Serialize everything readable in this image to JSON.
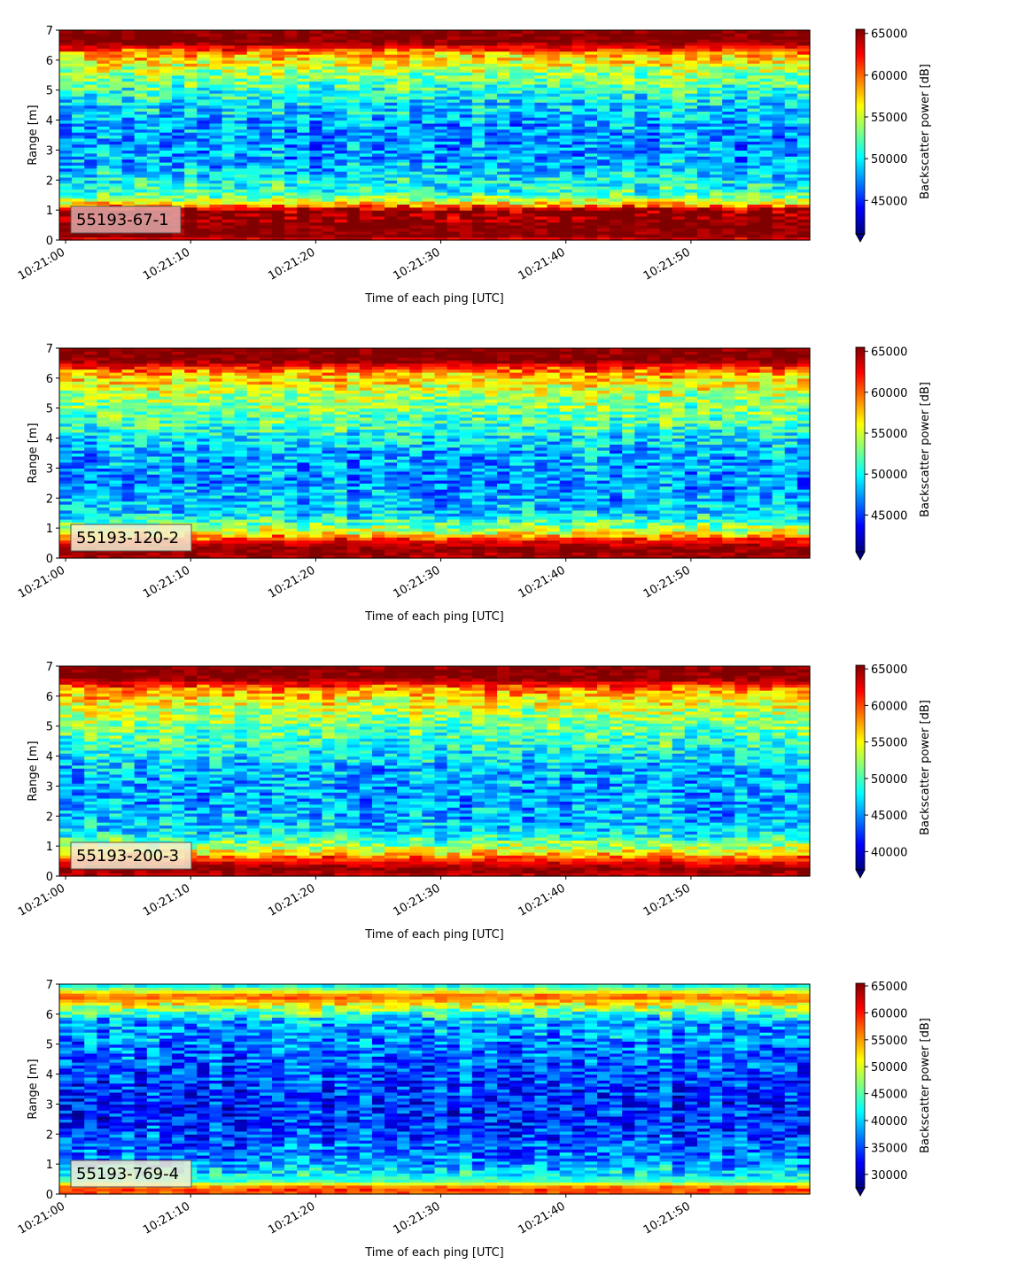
{
  "figure": {
    "panel_labels": [
      "55193-67-1",
      "55193-120-2",
      "55193-200-3",
      "55193-769-4"
    ]
  },
  "chart_data": [
    {
      "type": "heatmap",
      "annotation": "55193-67-1",
      "annotation_color": "#e0a8a8",
      "xlabel": "Time of each ping [UTC]",
      "ylabel": "Range [m]",
      "colorbar_label": "Backscatter power [dB]",
      "x_ticks": [
        "10:21:00",
        "10:21:10",
        "10:21:20",
        "10:21:30",
        "10:21:40",
        "10:21:50"
      ],
      "xlim_seconds": [
        -0.5,
        59.5
      ],
      "y_ticks": [
        0,
        1,
        2,
        3,
        4,
        5,
        6,
        7
      ],
      "ylim": [
        0,
        7
      ],
      "clim": [
        41000,
        65500
      ],
      "colorbar_ticks": [
        45000,
        50000,
        55000,
        60000,
        65000
      ],
      "colormap": "jet",
      "mean_profile": [
        {
          "range": 0.0,
          "value": 62000
        },
        {
          "range": 0.15,
          "value": 65500
        },
        {
          "range": 1.0,
          "value": 65500
        },
        {
          "range": 1.2,
          "value": 58000
        },
        {
          "range": 1.5,
          "value": 52000
        },
        {
          "range": 2.5,
          "value": 48500
        },
        {
          "range": 3.5,
          "value": 47500
        },
        {
          "range": 4.5,
          "value": 49500
        },
        {
          "range": 5.5,
          "value": 53500
        },
        {
          "range": 6.2,
          "value": 58000
        },
        {
          "range": 6.6,
          "value": 65500
        },
        {
          "range": 7.0,
          "value": 65500
        }
      ]
    },
    {
      "type": "heatmap",
      "annotation": "55193-120-2",
      "annotation_color": "#f4eed2",
      "xlabel": "Time of each ping [UTC]",
      "ylabel": "Range [m]",
      "colorbar_label": "Backscatter power [dB]",
      "x_ticks": [
        "10:21:00",
        "10:21:10",
        "10:21:20",
        "10:21:30",
        "10:21:40",
        "10:21:50"
      ],
      "xlim_seconds": [
        -0.5,
        59.5
      ],
      "y_ticks": [
        0,
        1,
        2,
        3,
        4,
        5,
        6,
        7
      ],
      "ylim": [
        0,
        7
      ],
      "clim": [
        40500,
        65500
      ],
      "colorbar_ticks": [
        45000,
        50000,
        55000,
        60000,
        65000
      ],
      "colormap": "jet",
      "mean_profile": [
        {
          "range": 0.0,
          "value": 64000
        },
        {
          "range": 0.3,
          "value": 65500
        },
        {
          "range": 0.55,
          "value": 63000
        },
        {
          "range": 0.9,
          "value": 55000
        },
        {
          "range": 1.5,
          "value": 49000
        },
        {
          "range": 2.5,
          "value": 47500
        },
        {
          "range": 3.5,
          "value": 48000
        },
        {
          "range": 4.5,
          "value": 51500
        },
        {
          "range": 5.5,
          "value": 54500
        },
        {
          "range": 6.2,
          "value": 58500
        },
        {
          "range": 6.6,
          "value": 65500
        },
        {
          "range": 7.0,
          "value": 65500
        }
      ]
    },
    {
      "type": "heatmap",
      "annotation": "55193-200-3",
      "annotation_color": "#f4eed2",
      "xlabel": "Time of each ping [UTC]",
      "ylabel": "Range [m]",
      "colorbar_label": "Backscatter power [dB]",
      "x_ticks": [
        "10:21:00",
        "10:21:10",
        "10:21:20",
        "10:21:30",
        "10:21:40",
        "10:21:50"
      ],
      "xlim_seconds": [
        -0.5,
        59.5
      ],
      "y_ticks": [
        0,
        1,
        2,
        3,
        4,
        5,
        6,
        7
      ],
      "ylim": [
        0,
        7
      ],
      "clim": [
        37500,
        65500
      ],
      "colorbar_ticks": [
        40000,
        45000,
        50000,
        55000,
        60000,
        65000
      ],
      "colormap": "jet",
      "mean_profile": [
        {
          "range": 0.0,
          "value": 63000
        },
        {
          "range": 0.25,
          "value": 65500
        },
        {
          "range": 0.5,
          "value": 62000
        },
        {
          "range": 0.9,
          "value": 54000
        },
        {
          "range": 1.5,
          "value": 47000
        },
        {
          "range": 2.5,
          "value": 45500
        },
        {
          "range": 3.5,
          "value": 46000
        },
        {
          "range": 4.5,
          "value": 49500
        },
        {
          "range": 5.5,
          "value": 53000
        },
        {
          "range": 6.2,
          "value": 57500
        },
        {
          "range": 6.6,
          "value": 65500
        },
        {
          "range": 7.0,
          "value": 65500
        }
      ]
    },
    {
      "type": "heatmap",
      "annotation": "55193-769-4",
      "annotation_color": "#f4eed2",
      "xlabel": "Time of each ping [UTC]",
      "ylabel": "Range [m]",
      "colorbar_label": "Backscatter power [dB]",
      "x_ticks": [
        "10:21:00",
        "10:21:10",
        "10:21:20",
        "10:21:30",
        "10:21:40",
        "10:21:50"
      ],
      "xlim_seconds": [
        -0.5,
        59.5
      ],
      "y_ticks": [
        0,
        1,
        2,
        3,
        4,
        5,
        6,
        7
      ],
      "ylim": [
        0,
        7
      ],
      "clim": [
        27500,
        65500
      ],
      "colorbar_ticks": [
        30000,
        35000,
        40000,
        45000,
        50000,
        55000,
        60000,
        65000
      ],
      "colormap": "jet",
      "mean_profile": [
        {
          "range": 0.0,
          "value": 55000
        },
        {
          "range": 0.1,
          "value": 60000
        },
        {
          "range": 0.25,
          "value": 56000
        },
        {
          "range": 0.45,
          "value": 44000
        },
        {
          "range": 1.0,
          "value": 38000
        },
        {
          "range": 2.0,
          "value": 34500
        },
        {
          "range": 3.0,
          "value": 33500
        },
        {
          "range": 4.0,
          "value": 35000
        },
        {
          "range": 5.0,
          "value": 37000
        },
        {
          "range": 5.8,
          "value": 39000
        },
        {
          "range": 6.3,
          "value": 50000
        },
        {
          "range": 6.6,
          "value": 58000
        },
        {
          "range": 7.0,
          "value": 40000
        }
      ]
    }
  ]
}
